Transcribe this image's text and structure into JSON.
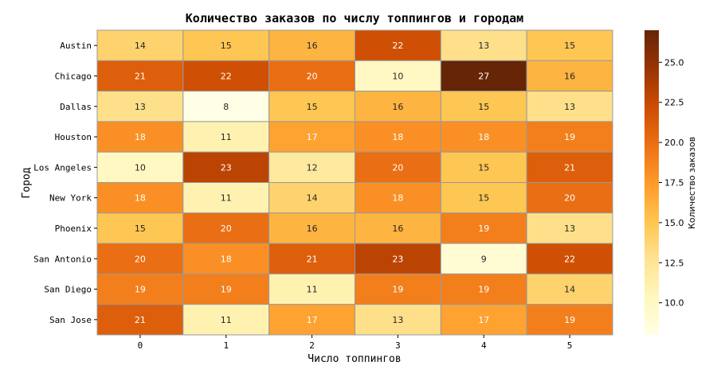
{
  "chart_data": {
    "type": "heatmap",
    "title": "Количество заказов по числу топпингов и городам",
    "xlabel": "Число топпингов",
    "ylabel": "Город",
    "x_categories": [
      "0",
      "1",
      "2",
      "3",
      "4",
      "5"
    ],
    "y_categories": [
      "Austin",
      "Chicago",
      "Dallas",
      "Houston",
      "Los Angeles",
      "New York",
      "Phoenix",
      "San Antonio",
      "San Diego",
      "San Jose"
    ],
    "values": [
      [
        14,
        15,
        16,
        22,
        13,
        15
      ],
      [
        21,
        22,
        20,
        10,
        27,
        16
      ],
      [
        13,
        8,
        15,
        16,
        15,
        13
      ],
      [
        18,
        11,
        17,
        18,
        18,
        19
      ],
      [
        10,
        23,
        12,
        20,
        15,
        21
      ],
      [
        18,
        11,
        14,
        18,
        15,
        20
      ],
      [
        15,
        20,
        16,
        16,
        19,
        13
      ],
      [
        20,
        18,
        21,
        23,
        9,
        22
      ],
      [
        19,
        19,
        11,
        19,
        19,
        14
      ],
      [
        21,
        11,
        17,
        13,
        17,
        19
      ]
    ],
    "colorbar": {
      "label": "Количество заказов",
      "range": [
        8,
        27
      ],
      "ticks": [
        "10.0",
        "12.5",
        "15.0",
        "17.5",
        "20.0",
        "22.5",
        "25.0"
      ],
      "colormap": [
        "#ffffe5",
        "#fff7bc",
        "#fee391",
        "#fec44f",
        "#fe9929",
        "#ec7014",
        "#cc4c02",
        "#993404",
        "#662506"
      ]
    },
    "annotated": true,
    "grid_line_color": "#999999"
  }
}
